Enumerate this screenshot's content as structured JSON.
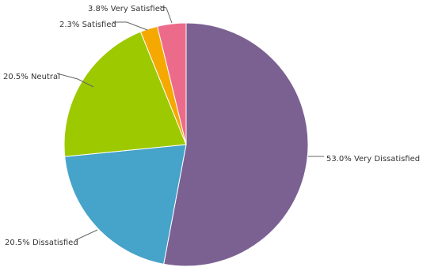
{
  "chart_data": {
    "type": "pie",
    "start_angle_deg": 0,
    "direction": "clockwise",
    "slices": [
      {
        "category": "Very Dissatisfied",
        "value": 53.0,
        "label": "53.0% Very Dissatisfied",
        "color": "#7b6192"
      },
      {
        "category": "Dissatisfied",
        "value": 20.5,
        "label": "20.5% Dissatisfied",
        "color": "#46a3c9"
      },
      {
        "category": "Neutral",
        "value": 20.5,
        "label": "20.5% Neutral",
        "color": "#9dc900"
      },
      {
        "category": "Satisfied",
        "value": 2.3,
        "label": "2.3% Satisfied",
        "color": "#f5a800"
      },
      {
        "category": "Very Satisfied",
        "value": 3.8,
        "label": "3.8% Very Satisfied",
        "color": "#ed6b8a"
      }
    ]
  }
}
